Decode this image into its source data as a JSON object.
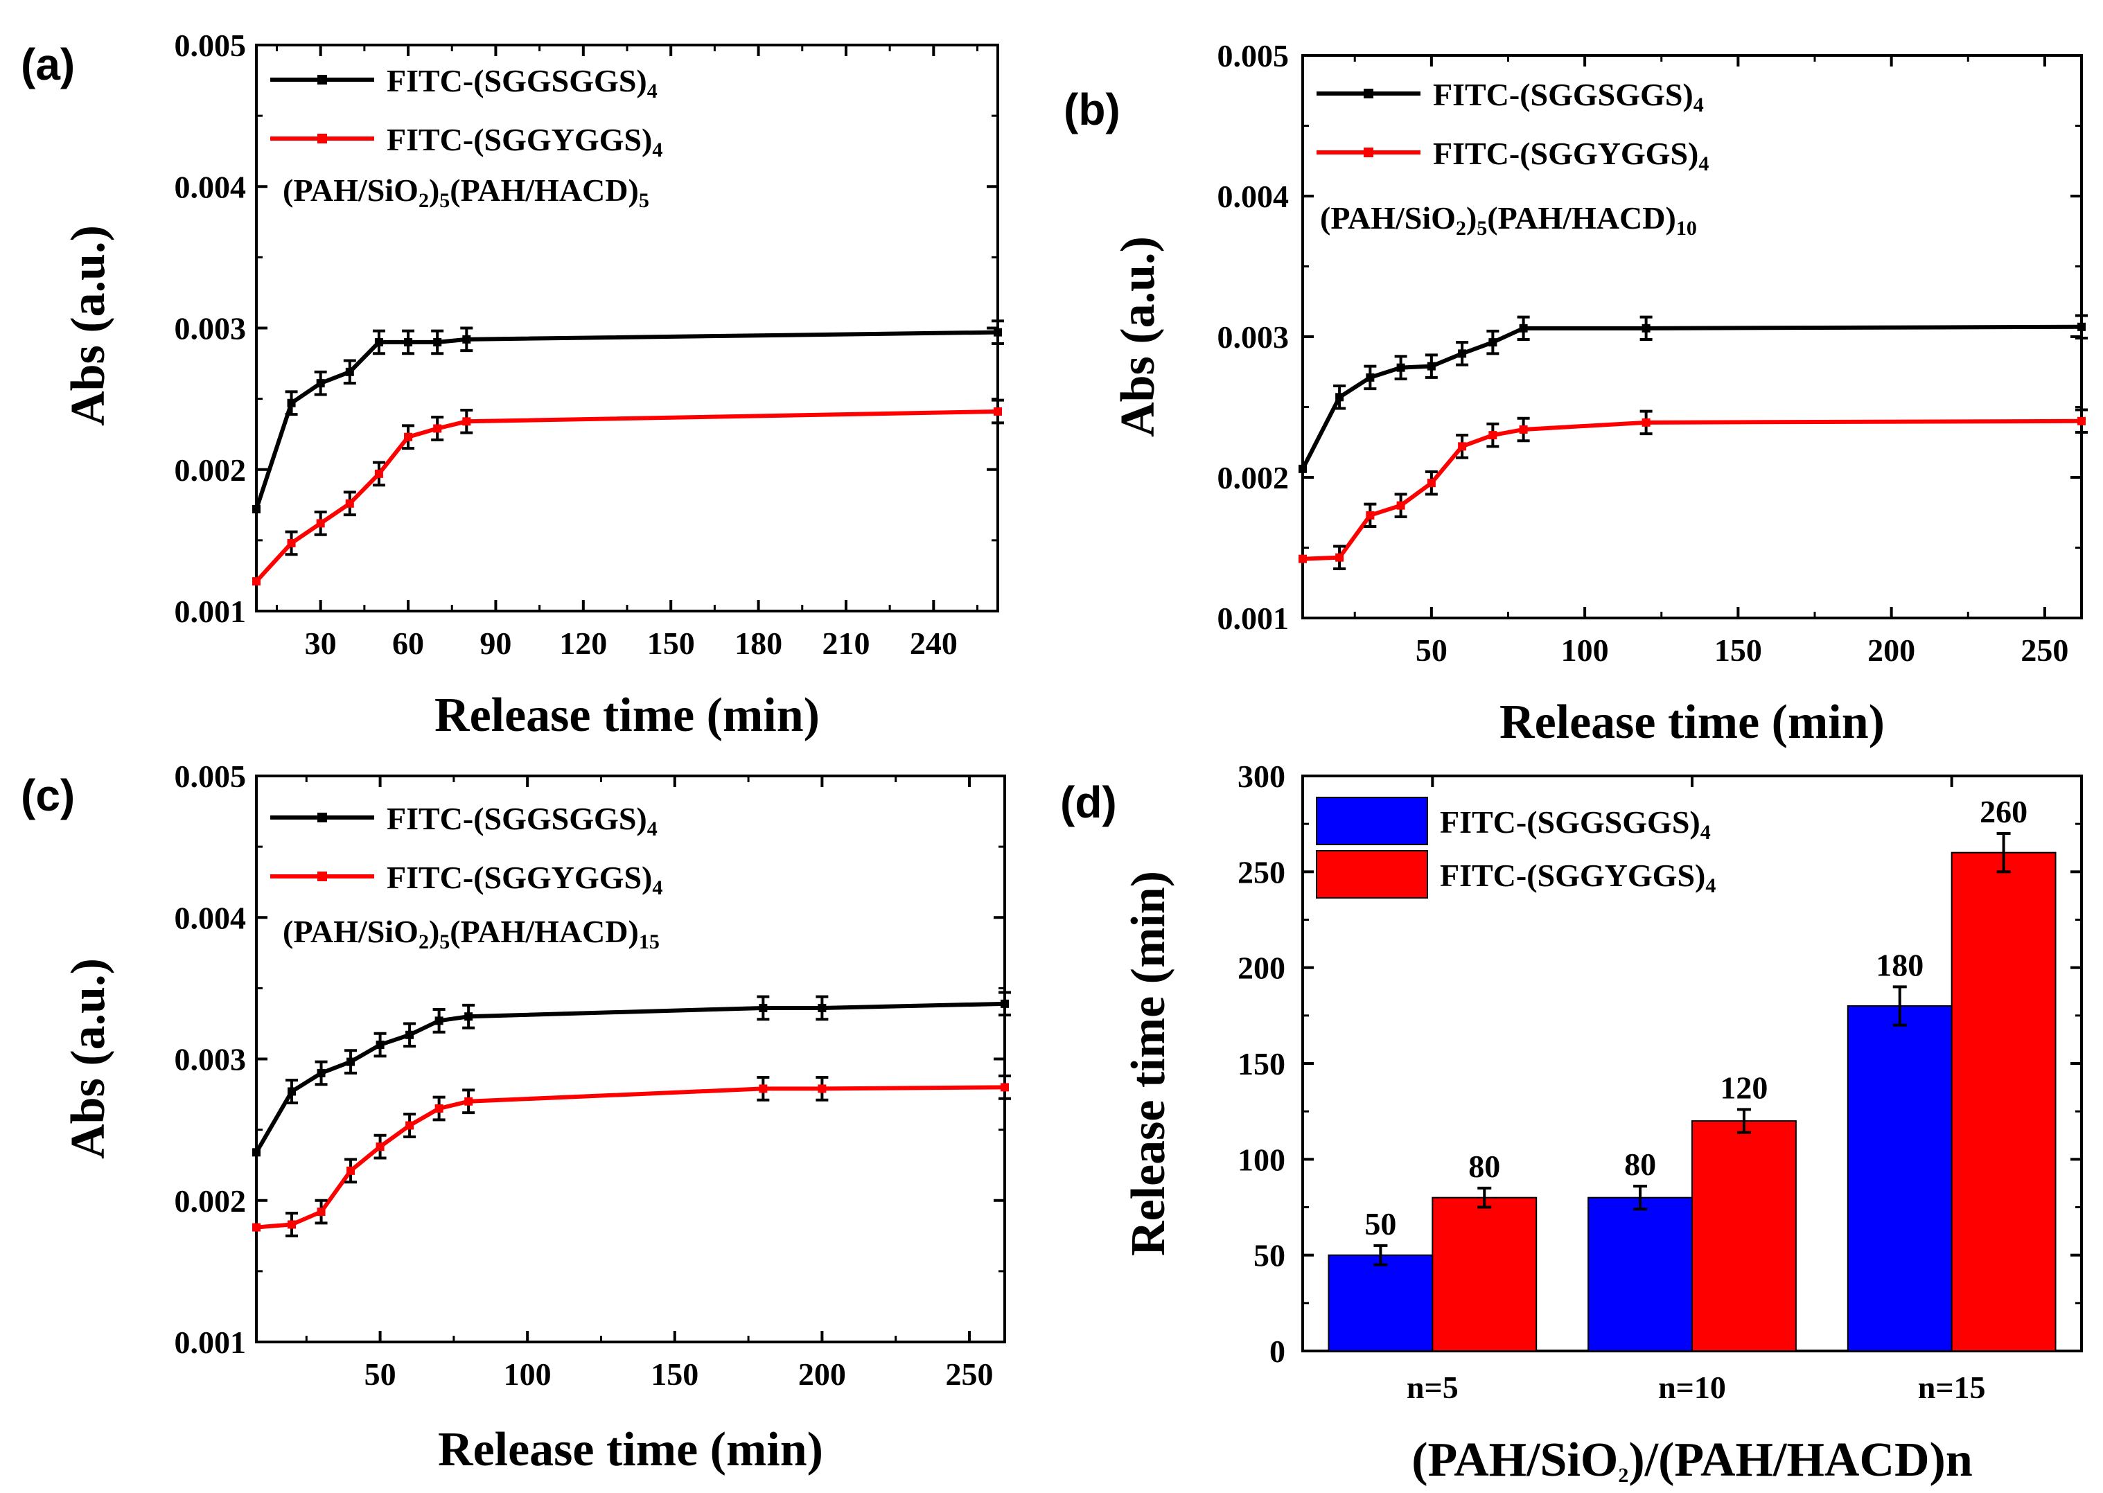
{
  "chart_data": [
    {
      "panel": "(a)",
      "type": "line",
      "xlabel": "Release time (min)",
      "ylabel": "Abs (a.u.)",
      "xlim": [
        8,
        262
      ],
      "ylim": [
        0.001,
        0.005
      ],
      "xticks": [
        30,
        60,
        90,
        120,
        150,
        180,
        210,
        240
      ],
      "yticks": [
        0.001,
        0.002,
        0.003,
        0.004,
        0.005
      ],
      "ytick_labels": [
        "0.001",
        "0.002",
        "0.003",
        "0.004",
        "0.005"
      ],
      "legend": [
        {
          "name": "FITC-(SGGSGGS)",
          "sub": "4",
          "color": "#000000"
        },
        {
          "name": "FITC-(SGGYGGS)",
          "sub": "4",
          "color": "#ff0000"
        }
      ],
      "annotation": [
        {
          "t": "(PAH/SiO",
          "sub": false
        },
        {
          "t": "2",
          "sub": true
        },
        {
          "t": ")",
          "sub": false
        },
        {
          "t": "5",
          "sub": true
        },
        {
          "t": "(PAH/HACD)",
          "sub": false
        },
        {
          "t": "5",
          "sub": true
        }
      ],
      "series": [
        {
          "name": "FITC-(SGGSGGS)4",
          "color": "#000000",
          "x": [
            8,
            20,
            30,
            40,
            50,
            60,
            70,
            80,
            262
          ],
          "y": [
            0.00172,
            0.00247,
            0.00261,
            0.00269,
            0.0029,
            0.0029,
            0.0029,
            0.00292,
            0.00297
          ],
          "err": [
            0,
            8e-05,
            8e-05,
            8e-05,
            8e-05,
            8e-05,
            8e-05,
            8e-05,
            8e-05
          ]
        },
        {
          "name": "FITC-(SGGYGGS)4",
          "color": "#ff0000",
          "x": [
            8,
            20,
            30,
            40,
            50,
            60,
            70,
            80,
            262
          ],
          "y": [
            0.00121,
            0.00148,
            0.00162,
            0.00176,
            0.00197,
            0.00223,
            0.00229,
            0.00234,
            0.00241
          ],
          "err": [
            0,
            8e-05,
            8e-05,
            8e-05,
            8e-05,
            8e-05,
            8e-05,
            8e-05,
            8e-05
          ]
        }
      ]
    },
    {
      "panel": "(b)",
      "type": "line",
      "xlabel": "Release time (min)",
      "ylabel": "Abs (a.u.)",
      "xlim": [
        8,
        262
      ],
      "ylim": [
        0.001,
        0.005
      ],
      "xticks": [
        50,
        100,
        150,
        200,
        250
      ],
      "yticks": [
        0.001,
        0.002,
        0.003,
        0.004,
        0.005
      ],
      "ytick_labels": [
        "0.001",
        "0.002",
        "0.003",
        "0.004",
        "0.005"
      ],
      "legend": [
        {
          "name": "FITC-(SGGSGGS)",
          "sub": "4",
          "color": "#000000"
        },
        {
          "name": "FITC-(SGGYGGS)",
          "sub": "4",
          "color": "#ff0000"
        }
      ],
      "annotation": [
        {
          "t": "(PAH/SiO",
          "sub": false
        },
        {
          "t": "2",
          "sub": true
        },
        {
          "t": ")",
          "sub": false
        },
        {
          "t": "5",
          "sub": true
        },
        {
          "t": "(PAH/HACD)",
          "sub": false
        },
        {
          "t": "10",
          "sub": true
        }
      ],
      "series": [
        {
          "name": "FITC-(SGGSGGS)4",
          "color": "#000000",
          "x": [
            8,
            20,
            30,
            40,
            50,
            60,
            70,
            80,
            120,
            262
          ],
          "y": [
            0.00206,
            0.00257,
            0.00271,
            0.00278,
            0.00279,
            0.00288,
            0.00296,
            0.00306,
            0.00306,
            0.00307
          ],
          "err": [
            0,
            8e-05,
            8e-05,
            8e-05,
            8e-05,
            8e-05,
            8e-05,
            8e-05,
            8e-05,
            8e-05
          ]
        },
        {
          "name": "FITC-(SGGYGGS)4",
          "color": "#ff0000",
          "x": [
            8,
            20,
            30,
            40,
            50,
            60,
            70,
            80,
            120,
            262
          ],
          "y": [
            0.00142,
            0.00143,
            0.00173,
            0.0018,
            0.00196,
            0.00222,
            0.0023,
            0.00234,
            0.00239,
            0.0024
          ],
          "err": [
            0,
            8e-05,
            8e-05,
            8e-05,
            8e-05,
            8e-05,
            8e-05,
            8e-05,
            8e-05,
            8e-05
          ]
        }
      ]
    },
    {
      "panel": "(c)",
      "type": "line",
      "xlabel": "Release time (min)",
      "ylabel": "Abs (a.u.)",
      "xlim": [
        8,
        262
      ],
      "ylim": [
        0.001,
        0.005
      ],
      "xticks": [
        50,
        100,
        150,
        200,
        250
      ],
      "yticks": [
        0.001,
        0.002,
        0.003,
        0.004,
        0.005
      ],
      "ytick_labels": [
        "0.001",
        "0.002",
        "0.003",
        "0.004",
        "0.005"
      ],
      "legend": [
        {
          "name": "FITC-(SGGSGGS)",
          "sub": "4",
          "color": "#000000"
        },
        {
          "name": "FITC-(SGGYGGS)",
          "sub": "4",
          "color": "#ff0000"
        }
      ],
      "annotation": [
        {
          "t": "(PAH/SiO",
          "sub": false
        },
        {
          "t": "2",
          "sub": true
        },
        {
          "t": ")",
          "sub": false
        },
        {
          "t": "5",
          "sub": true
        },
        {
          "t": "(PAH/HACD)",
          "sub": false
        },
        {
          "t": "15",
          "sub": true
        }
      ],
      "series": [
        {
          "name": "FITC-(SGGSGGS)4",
          "color": "#000000",
          "x": [
            8,
            20,
            30,
            40,
            50,
            60,
            70,
            80,
            180,
            200,
            262
          ],
          "y": [
            0.00234,
            0.00277,
            0.0029,
            0.00298,
            0.0031,
            0.00317,
            0.00327,
            0.0033,
            0.00336,
            0.00336,
            0.00339
          ],
          "err": [
            0,
            8e-05,
            8e-05,
            8e-05,
            8e-05,
            8e-05,
            8e-05,
            8e-05,
            8e-05,
            8e-05,
            8e-05
          ]
        },
        {
          "name": "FITC-(SGGYGGS)4",
          "color": "#ff0000",
          "x": [
            8,
            20,
            30,
            40,
            50,
            60,
            70,
            80,
            180,
            200,
            262
          ],
          "y": [
            0.00181,
            0.00183,
            0.00192,
            0.00221,
            0.00238,
            0.00253,
            0.00265,
            0.0027,
            0.00279,
            0.00279,
            0.0028
          ],
          "err": [
            0,
            8e-05,
            8e-05,
            8e-05,
            8e-05,
            8e-05,
            8e-05,
            8e-05,
            8e-05,
            8e-05,
            8e-05
          ]
        }
      ]
    },
    {
      "panel": "(d)",
      "type": "bar",
      "xlabel": "(PAH/SiO2)/(PAH/HACD)n",
      "xlabel_parts": [
        {
          "t": "(PAH/SiO",
          "sub": false
        },
        {
          "t": "2",
          "sub": true
        },
        {
          "t": ")/(PAH/HACD)n",
          "sub": false
        }
      ],
      "ylabel": "Release time (min)",
      "ylim": [
        0,
        300
      ],
      "yticks": [
        0,
        50,
        100,
        150,
        200,
        250,
        300
      ],
      "ytick_labels": [
        "0",
        "50",
        "100",
        "150",
        "200",
        "250",
        "300"
      ],
      "categories": [
        "n=5",
        "n=10",
        "n=15"
      ],
      "legend": [
        {
          "name": "FITC-(SGGSGGS)",
          "sub": "4",
          "color": "#0000ff"
        },
        {
          "name": "FITC-(SGGYGGS)",
          "sub": "4",
          "color": "#ff0000"
        }
      ],
      "series": [
        {
          "name": "FITC-(SGGSGGS)4",
          "color": "#0000ff",
          "values": [
            50,
            80,
            180
          ],
          "labels": [
            "50",
            "80",
            "180"
          ],
          "err": [
            5,
            6,
            10
          ]
        },
        {
          "name": "FITC-(SGGYGGS)4",
          "color": "#ff0000",
          "values": [
            80,
            120,
            260
          ],
          "labels": [
            "80",
            "120",
            "260"
          ],
          "err": [
            5,
            6,
            10
          ]
        }
      ]
    }
  ]
}
